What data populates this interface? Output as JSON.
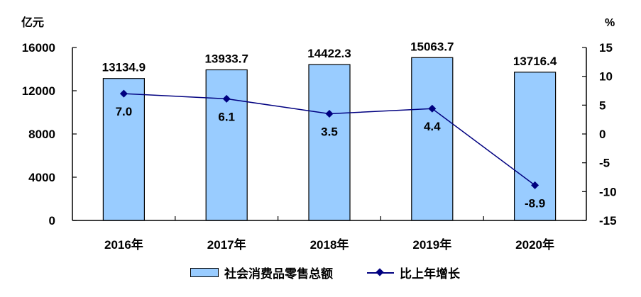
{
  "chart_data": {
    "type": "bar+line",
    "title": "",
    "categories": [
      "2016年",
      "2017年",
      "2018年",
      "2019年",
      "2020年"
    ],
    "series": [
      {
        "name": "社会消费品零售总额",
        "type": "bar",
        "axis": "left",
        "color": "#99ccff",
        "values": [
          13134.9,
          13933.7,
          14422.3,
          15063.7,
          13716.4
        ]
      },
      {
        "name": "比上年增长",
        "type": "line",
        "axis": "right",
        "color": "#000080",
        "marker": "diamond",
        "values": [
          7.0,
          6.1,
          3.5,
          4.4,
          -8.9
        ]
      }
    ],
    "ylabel_left": "亿元",
    "ylabel_right": "%",
    "ylim_left": [
      0,
      16000
    ],
    "ylim_right": [
      -15,
      15
    ],
    "yticks_left": [
      "0",
      "4000",
      "8000",
      "12000",
      "16000"
    ],
    "yticks_right": [
      "-15",
      "-10",
      "-5",
      "0",
      "5",
      "10",
      "15"
    ],
    "bar_labels": [
      "13134.9",
      "13933.7",
      "14422.3",
      "15063.7",
      "13716.4"
    ],
    "line_labels": [
      "7.0",
      "6.1",
      "3.5",
      "4.4",
      "-8.9"
    ],
    "grid": false,
    "legend_position": "bottom"
  },
  "legend": {
    "bar_label": "社会消费品零售总额",
    "line_label": "比上年增长"
  }
}
